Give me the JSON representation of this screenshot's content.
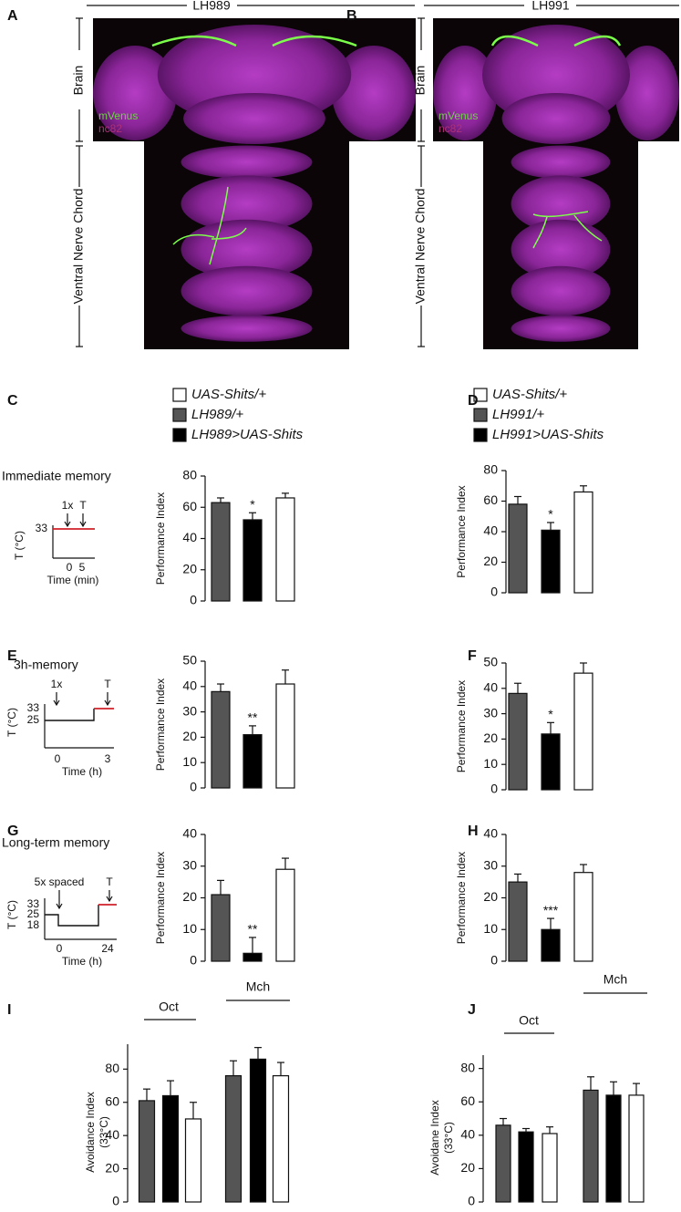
{
  "images": [
    {
      "letter": "A",
      "line": "LH989",
      "regions": [
        "Brain",
        "Ventral Nerve Chord"
      ],
      "stains": [
        "mVenus",
        "nc82"
      ]
    },
    {
      "letter": "B",
      "line": "LH991",
      "regions": [
        "Brain",
        "Ventral Nerve Chord"
      ],
      "stains": [
        "mVenus",
        "nc82"
      ]
    }
  ],
  "legends": [
    {
      "entries": [
        "UAS-Shits/+",
        "LH989/+",
        "LH989>UAS-Shits"
      ],
      "colors": [
        "#ffffff",
        "#555555",
        "#000000"
      ]
    },
    {
      "entries": [
        "UAS-Shits/+",
        "LH991/+",
        "LH991>UAS-Shits"
      ],
      "colors": [
        "#ffffff",
        "#555555",
        "#000000"
      ]
    }
  ],
  "protocols": [
    {
      "title": "Immediate memory",
      "events": [
        "1x",
        "T"
      ],
      "ylabel": "T (°C)",
      "yticks": [
        33
      ],
      "xlabel": "Time (min)",
      "xticks": [
        0,
        5
      ]
    },
    {
      "title": "3h-memory",
      "events": [
        "1x",
        "T"
      ],
      "ylabel": "T (°C)",
      "yticks": [
        33,
        25
      ],
      "xlabel": "Time (h)",
      "xticks": [
        0,
        3
      ]
    },
    {
      "title": "Long-term memory",
      "events": [
        "5x spaced",
        "T"
      ],
      "ylabel": "T (°C)",
      "yticks": [
        33,
        25,
        18
      ],
      "xlabel": "Time (h)",
      "xticks": [
        0,
        24
      ]
    }
  ],
  "chart_data": [
    {
      "type": "bar",
      "panel": "C",
      "ylabel": "Performance Index",
      "ylim": [
        0,
        80
      ],
      "yticks": [
        0,
        20,
        40,
        60,
        80
      ],
      "values": [
        63,
        52,
        66
      ],
      "errors": [
        3,
        4.5,
        3
      ],
      "colors": [
        "#555555",
        "#000000",
        "#ffffff"
      ],
      "significance": [
        null,
        "*",
        null
      ]
    },
    {
      "type": "bar",
      "panel": "D",
      "ylabel": "Performance Index",
      "ylim": [
        0,
        80
      ],
      "yticks": [
        0,
        20,
        40,
        60,
        80
      ],
      "values": [
        58,
        41,
        66
      ],
      "errors": [
        5,
        5,
        4
      ],
      "colors": [
        "#555555",
        "#000000",
        "#ffffff"
      ],
      "significance": [
        null,
        "*",
        null
      ]
    },
    {
      "type": "bar",
      "panel": "E",
      "ylabel": "Performance Index",
      "ylim": [
        0,
        50
      ],
      "yticks": [
        0,
        10,
        20,
        30,
        40,
        50
      ],
      "values": [
        38,
        21,
        41
      ],
      "errors": [
        3,
        3.5,
        5.5
      ],
      "colors": [
        "#555555",
        "#000000",
        "#ffffff"
      ],
      "significance": [
        null,
        "**",
        null
      ]
    },
    {
      "type": "bar",
      "panel": "F",
      "ylabel": "Performance Index",
      "ylim": [
        0,
        50
      ],
      "yticks": [
        0,
        10,
        20,
        30,
        40,
        50
      ],
      "values": [
        38,
        22,
        46
      ],
      "errors": [
        4,
        4.5,
        4
      ],
      "colors": [
        "#555555",
        "#000000",
        "#ffffff"
      ],
      "significance": [
        null,
        "*",
        null
      ]
    },
    {
      "type": "bar",
      "panel": "G",
      "ylabel": "Performance Index",
      "ylim": [
        0,
        40
      ],
      "yticks": [
        0,
        10,
        20,
        30,
        40
      ],
      "values": [
        21,
        2.5,
        29
      ],
      "errors": [
        4.5,
        5,
        3.5
      ],
      "colors": [
        "#555555",
        "#000000",
        "#ffffff"
      ],
      "significance": [
        null,
        "**",
        null
      ]
    },
    {
      "type": "bar",
      "panel": "H",
      "ylabel": "Performance Index",
      "ylim": [
        0,
        40
      ],
      "yticks": [
        0,
        10,
        20,
        30,
        40
      ],
      "values": [
        25,
        10,
        28
      ],
      "errors": [
        2.5,
        3.5,
        2.5
      ],
      "colors": [
        "#555555",
        "#000000",
        "#ffffff"
      ],
      "significance": [
        null,
        "***",
        null
      ]
    },
    {
      "type": "grouped_bar",
      "panel": "I",
      "ylabel": [
        "Avoidance Index",
        "(33°C)"
      ],
      "ylim": [
        0,
        95
      ],
      "yticks": [
        0,
        20,
        40,
        60,
        80
      ],
      "categories": [
        "Oct",
        "Mch"
      ],
      "series": [
        {
          "color": "#555555",
          "values": [
            61,
            76
          ],
          "errors": [
            7,
            9
          ]
        },
        {
          "color": "#000000",
          "values": [
            64,
            86
          ],
          "errors": [
            9,
            7
          ]
        },
        {
          "color": "#ffffff",
          "values": [
            50,
            76
          ],
          "errors": [
            10,
            8
          ]
        }
      ]
    },
    {
      "type": "grouped_bar",
      "panel": "J",
      "ylabel": [
        "Avoidane Index",
        "(33°C)"
      ],
      "ylim": [
        0,
        88
      ],
      "yticks": [
        0,
        20,
        40,
        60,
        80
      ],
      "categories": [
        "Oct",
        "Mch"
      ],
      "series": [
        {
          "color": "#555555",
          "values": [
            46,
            67
          ],
          "errors": [
            4,
            8
          ]
        },
        {
          "color": "#000000",
          "values": [
            42,
            64
          ],
          "errors": [
            2,
            8
          ]
        },
        {
          "color": "#ffffff",
          "values": [
            41,
            64
          ],
          "errors": [
            4,
            7
          ]
        }
      ]
    }
  ]
}
